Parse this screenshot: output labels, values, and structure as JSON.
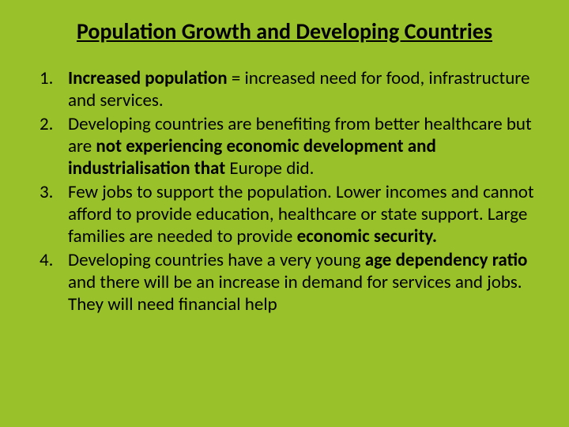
{
  "background_color": "#99c12a",
  "text_color": "#000000",
  "title": {
    "text": "Population Growth and Developing Countries",
    "fontsize": 28,
    "bold": true,
    "underline": true,
    "align": "center"
  },
  "list": {
    "type": "ordered",
    "fontsize": 23,
    "items": [
      {
        "runs": [
          {
            "text": "Increased population ",
            "bold": true
          },
          {
            "text": "= increased need for food, infrastructure and services.",
            "bold": false
          }
        ]
      },
      {
        "runs": [
          {
            "text": "Developing countries are benefiting from better healthcare but are ",
            "bold": false
          },
          {
            "text": "not experiencing economic development and industrialisation that ",
            "bold": true
          },
          {
            "text": "Europe did.",
            "bold": false
          }
        ]
      },
      {
        "runs": [
          {
            "text": "Few jobs to support the population. Lower incomes and cannot afford to provide education, healthcare or state support. Large families are needed to provide ",
            "bold": false
          },
          {
            "text": "economic security.",
            "bold": true
          }
        ]
      },
      {
        "runs": [
          {
            "text": "Developing countries have a very young ",
            "bold": false
          },
          {
            "text": "age dependency ratio ",
            "bold": true
          },
          {
            "text": "and there will be an increase in demand for services and jobs. They will need financial help",
            "bold": false
          }
        ]
      }
    ]
  }
}
